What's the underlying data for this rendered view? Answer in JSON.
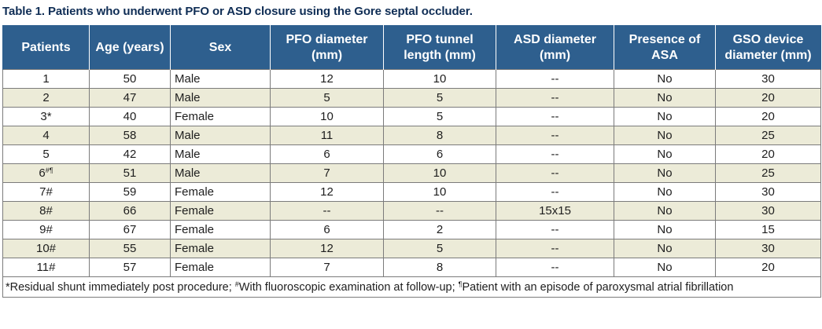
{
  "caption": "Table 1. Patients who underwent PFO or ASD closure using the Gore septal occluder.",
  "headers": [
    "Patients",
    "Age (years)",
    "Sex",
    "PFO diameter (mm)",
    "PFO tunnel length (mm)",
    "ASD diameter (mm)",
    "Presence of ASA",
    "GSO device diameter (mm)"
  ],
  "rows": [
    {
      "patient": "1",
      "sup": "",
      "age": "50",
      "sex": "Male",
      "pfo_diameter": "12",
      "tunnel": "10",
      "asd": "--",
      "asa": "No",
      "gso": "30"
    },
    {
      "patient": "2",
      "sup": "",
      "age": "47",
      "sex": "Male",
      "pfo_diameter": "5",
      "tunnel": "5",
      "asd": "--",
      "asa": "No",
      "gso": "20"
    },
    {
      "patient": "3*",
      "sup": "",
      "age": "40",
      "sex": "Female",
      "pfo_diameter": "10",
      "tunnel": "5",
      "asd": "--",
      "asa": "No",
      "gso": "20"
    },
    {
      "patient": "4",
      "sup": "",
      "age": "58",
      "sex": "Male",
      "pfo_diameter": "11",
      "tunnel": "8",
      "asd": "--",
      "asa": "No",
      "gso": "25"
    },
    {
      "patient": "5",
      "sup": "",
      "age": "42",
      "sex": "Male",
      "pfo_diameter": "6",
      "tunnel": "6",
      "asd": "--",
      "asa": "No",
      "gso": "20"
    },
    {
      "patient": "6",
      "sup": "#¶",
      "age": "51",
      "sex": "Male",
      "pfo_diameter": "7",
      "tunnel": "10",
      "asd": "--",
      "asa": "No",
      "gso": "25"
    },
    {
      "patient": "7#",
      "sup": "",
      "age": "59",
      "sex": "Female",
      "pfo_diameter": "12",
      "tunnel": "10",
      "asd": "--",
      "asa": "No",
      "gso": "30"
    },
    {
      "patient": "8#",
      "sup": "",
      "age": "66",
      "sex": "Female",
      "pfo_diameter": "--",
      "tunnel": "--",
      "asd": "15x15",
      "asa": "No",
      "gso": "30"
    },
    {
      "patient": "9#",
      "sup": "",
      "age": "67",
      "sex": "Female",
      "pfo_diameter": "6",
      "tunnel": "2",
      "asd": "--",
      "asa": "No",
      "gso": "15"
    },
    {
      "patient": "10#",
      "sup": "",
      "age": "55",
      "sex": "Female",
      "pfo_diameter": "12",
      "tunnel": "5",
      "asd": "--",
      "asa": "No",
      "gso": "30"
    },
    {
      "patient": "11#",
      "sup": "",
      "age": "57",
      "sex": "Female",
      "pfo_diameter": "7",
      "tunnel": "8",
      "asd": "--",
      "asa": "No",
      "gso": "20"
    }
  ],
  "footnote": {
    "part1": "*Residual shunt immediately post procedure; ",
    "mark2": "#",
    "part2": "With fluoroscopic examination at follow-up; ",
    "mark3": "¶",
    "part3": "Patient with an episode of paroxysmal atrial fibrillation"
  }
}
